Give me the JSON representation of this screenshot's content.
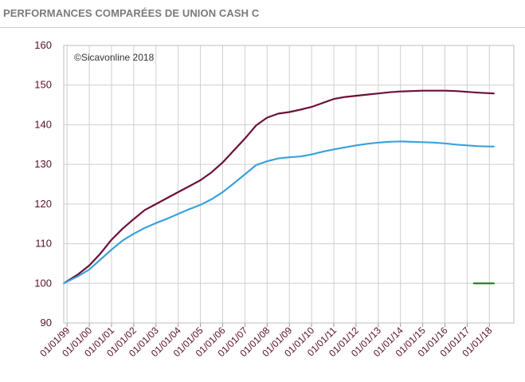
{
  "header": {
    "title": "PERFORMANCES COMPARÉES DE UNION CASH C"
  },
  "chart_data": {
    "type": "line",
    "title": "",
    "xlabel": "",
    "ylabel": "",
    "ylim": [
      90,
      160
    ],
    "yticks": [
      90,
      100,
      110,
      120,
      130,
      140,
      150,
      160
    ],
    "xlim": [
      1998.85,
      2019.1
    ],
    "xticks": [
      {
        "x": 1999,
        "label": "01/01/99"
      },
      {
        "x": 2000,
        "label": "01/01/00"
      },
      {
        "x": 2001,
        "label": "01/01/01"
      },
      {
        "x": 2002,
        "label": "01/01/02"
      },
      {
        "x": 2003,
        "label": "01/01/03"
      },
      {
        "x": 2004,
        "label": "01/01/04"
      },
      {
        "x": 2005,
        "label": "01/01/05"
      },
      {
        "x": 2006,
        "label": "01/01/06"
      },
      {
        "x": 2007,
        "label": "01/01/07"
      },
      {
        "x": 2008,
        "label": "01/01/08"
      },
      {
        "x": 2009,
        "label": "01/01/09"
      },
      {
        "x": 2010,
        "label": "01/01/10"
      },
      {
        "x": 2011,
        "label": "01/01/11"
      },
      {
        "x": 2012,
        "label": "01/01/12"
      },
      {
        "x": 2013,
        "label": "01/01/13"
      },
      {
        "x": 2014,
        "label": "01/01/14"
      },
      {
        "x": 2015,
        "label": "01/01/15"
      },
      {
        "x": 2016,
        "label": "01/01/16"
      },
      {
        "x": 2017,
        "label": "01/01/17"
      },
      {
        "x": 2018,
        "label": "01/01/18"
      }
    ],
    "grid": true,
    "annotation": "©Sicavonline 2018",
    "series": [
      {
        "color": "#6b1038",
        "points": [
          [
            1998.85,
            100
          ],
          [
            1999.5,
            102.3
          ],
          [
            2000,
            104.5
          ],
          [
            2000.5,
            107.5
          ],
          [
            2001,
            111
          ],
          [
            2001.5,
            113.8
          ],
          [
            2002,
            116.2
          ],
          [
            2002.5,
            118.5
          ],
          [
            2003,
            120
          ],
          [
            2003.5,
            121.5
          ],
          [
            2004,
            123
          ],
          [
            2004.5,
            124.5
          ],
          [
            2005,
            126
          ],
          [
            2005.5,
            128
          ],
          [
            2006,
            130.5
          ],
          [
            2006.5,
            133.5
          ],
          [
            2007,
            136.5
          ],
          [
            2007.5,
            139.8
          ],
          [
            2008,
            141.8
          ],
          [
            2008.5,
            142.8
          ],
          [
            2009,
            143.2
          ],
          [
            2009.5,
            143.8
          ],
          [
            2010,
            144.5
          ],
          [
            2010.5,
            145.5
          ],
          [
            2011,
            146.5
          ],
          [
            2011.5,
            147
          ],
          [
            2012,
            147.3
          ],
          [
            2012.5,
            147.6
          ],
          [
            2013,
            147.9
          ],
          [
            2013.5,
            148.2
          ],
          [
            2014,
            148.4
          ],
          [
            2014.5,
            148.5
          ],
          [
            2015,
            148.6
          ],
          [
            2015.5,
            148.6
          ],
          [
            2016,
            148.6
          ],
          [
            2016.5,
            148.5
          ],
          [
            2017,
            148.3
          ],
          [
            2017.5,
            148.1
          ],
          [
            2018.2,
            147.9
          ]
        ]
      },
      {
        "color": "#3aa2dc",
        "points": [
          [
            1998.85,
            100
          ],
          [
            1999.5,
            101.8
          ],
          [
            2000,
            103.5
          ],
          [
            2000.5,
            106
          ],
          [
            2001,
            108.5
          ],
          [
            2001.5,
            110.8
          ],
          [
            2002,
            112.5
          ],
          [
            2002.5,
            114
          ],
          [
            2003,
            115.2
          ],
          [
            2003.5,
            116.3
          ],
          [
            2004,
            117.5
          ],
          [
            2004.5,
            118.7
          ],
          [
            2005,
            119.8
          ],
          [
            2005.5,
            121.2
          ],
          [
            2006,
            123
          ],
          [
            2006.5,
            125.2
          ],
          [
            2007,
            127.5
          ],
          [
            2007.5,
            129.8
          ],
          [
            2008,
            130.8
          ],
          [
            2008.5,
            131.5
          ],
          [
            2009,
            131.8
          ],
          [
            2009.5,
            132
          ],
          [
            2010,
            132.5
          ],
          [
            2010.5,
            133.2
          ],
          [
            2011,
            133.8
          ],
          [
            2011.5,
            134.3
          ],
          [
            2012,
            134.8
          ],
          [
            2012.5,
            135.2
          ],
          [
            2013,
            135.5
          ],
          [
            2013.5,
            135.7
          ],
          [
            2014,
            135.8
          ],
          [
            2014.5,
            135.7
          ],
          [
            2015,
            135.6
          ],
          [
            2015.5,
            135.5
          ],
          [
            2016,
            135.3
          ],
          [
            2016.5,
            135
          ],
          [
            2017,
            134.8
          ],
          [
            2017.5,
            134.6
          ],
          [
            2018.2,
            134.5
          ]
        ]
      },
      {
        "color": "#1f7a1f",
        "points": [
          [
            2017.3,
            100
          ],
          [
            2018.2,
            100
          ]
        ]
      }
    ]
  }
}
